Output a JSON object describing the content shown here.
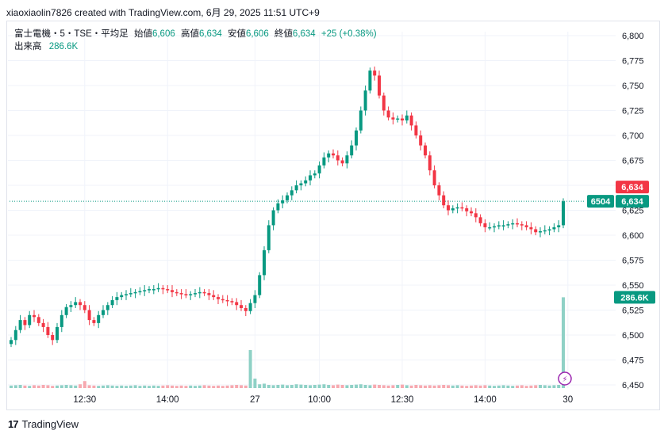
{
  "header": {
    "credit": "xiaoxiaolin7826 created with TradingView.com, 6月 29, 2025 11:51 UTC+9"
  },
  "legend": {
    "symbol": "富士電機・5・TSE・平均足",
    "open_label": "始値",
    "open": "6,606",
    "high_label": "高値",
    "high": "6,634",
    "low_label": "安値",
    "low": "6,606",
    "close_label": "終値",
    "close": "6,634",
    "change": "+25 (+0.38%)",
    "volume_label": "出来高",
    "volume": "286.6K"
  },
  "footer": {
    "brand": "TradingView",
    "logo_glyph": "17"
  },
  "colors": {
    "up": "#089981",
    "down": "#f23645",
    "vol_up": "#8fd1c6",
    "vol_down": "#f7a9b0",
    "grid": "#f0f3fa",
    "lastprice_line": "#089981",
    "alert": "#9c27b0"
  },
  "chart_data": {
    "type": "candlestick",
    "ylim": [
      6450,
      6800
    ],
    "y_ticks": [
      "6,800",
      "6,775",
      "6,750",
      "6,725",
      "6,700",
      "6,675",
      "6,650",
      "6,625",
      "6,600",
      "6,575",
      "6,550",
      "6,525",
      "6,500",
      "6,475",
      "6,450"
    ],
    "y_tick_values": [
      6800,
      6775,
      6750,
      6725,
      6700,
      6675,
      6650,
      6625,
      6600,
      6575,
      6550,
      6525,
      6500,
      6475,
      6450
    ],
    "x_ticks": [
      {
        "label": "12:30",
        "index": 16
      },
      {
        "label": "14:00",
        "index": 34
      },
      {
        "label": "27",
        "index": 53
      },
      {
        "label": "10:00",
        "index": 67
      },
      {
        "label": "12:30",
        "index": 85
      },
      {
        "label": "14:00",
        "index": 103
      },
      {
        "label": "30",
        "index": 121
      }
    ],
    "price_labels": [
      {
        "text": "6,634",
        "value": 6634,
        "color": "#f23645"
      },
      {
        "text": "6,634",
        "value": 6634,
        "color": "#089981",
        "prefix": "6504"
      }
    ],
    "volume_label": {
      "text": "286.6K",
      "value": 286.6
    },
    "volume_max_k": 300,
    "series": [
      {
        "name": "Price",
        "candles_close": [
          6495,
          6505,
          6515,
          6510,
          6520,
          6518,
          6512,
          6508,
          6500,
          6495,
          6508,
          6520,
          6528,
          6530,
          6533,
          6530,
          6525,
          6515,
          6512,
          6520,
          6525,
          6530,
          6535,
          6538,
          6540,
          6541,
          6542,
          6543,
          6544,
          6545,
          6546,
          6546,
          6547,
          6546,
          6545,
          6543,
          6542,
          6541,
          6540,
          6541,
          6542,
          6543,
          6542,
          6540,
          6538,
          6536,
          6535,
          6534,
          6533,
          6530,
          6527,
          6524,
          6532,
          6540,
          6560,
          6585,
          6610,
          6625,
          6632,
          6635,
          6640,
          6645,
          6650,
          6652,
          6655,
          6660,
          6662,
          6670,
          6678,
          6682,
          6680,
          6675,
          6672,
          6680,
          6690,
          6705,
          6725,
          6745,
          6765,
          6760,
          6740,
          6725,
          6718,
          6716,
          6717,
          6715,
          6720,
          6710,
          6700,
          6690,
          6680,
          6665,
          6650,
          6640,
          6630,
          6625,
          6627,
          6628,
          6627,
          6624,
          6622,
          6618,
          6612,
          6608,
          6608,
          6609,
          6610,
          6610,
          6611,
          6612,
          6611,
          6610,
          6608,
          6606,
          6603,
          6604,
          6605,
          6606,
          6608,
          6610,
          6634
        ]
      }
    ],
    "volume_k": [
      8,
      9,
      10,
      8,
      7,
      9,
      8,
      10,
      9,
      7,
      8,
      9,
      10,
      9,
      8,
      12,
      22,
      9,
      8,
      7,
      8,
      9,
      8,
      7,
      8,
      7,
      8,
      9,
      7,
      8,
      7,
      8,
      7,
      8,
      9,
      8,
      7,
      8,
      7,
      8,
      7,
      8,
      9,
      8,
      7,
      8,
      7,
      8,
      9,
      10,
      9,
      8,
      120,
      30,
      12,
      14,
      10,
      9,
      10,
      11,
      9,
      10,
      12,
      11,
      10,
      9,
      10,
      11,
      12,
      10,
      9,
      11,
      10,
      9,
      10,
      11,
      12,
      10,
      9,
      11,
      10,
      9,
      8,
      9,
      10,
      11,
      9,
      8,
      10,
      9,
      8,
      9,
      8,
      9,
      10,
      9,
      8,
      9,
      8,
      7,
      8,
      9,
      8,
      9,
      8,
      7,
      8,
      9,
      8,
      7,
      8,
      9,
      7,
      8,
      9,
      10,
      9,
      8,
      9,
      10,
      286.6
    ]
  }
}
